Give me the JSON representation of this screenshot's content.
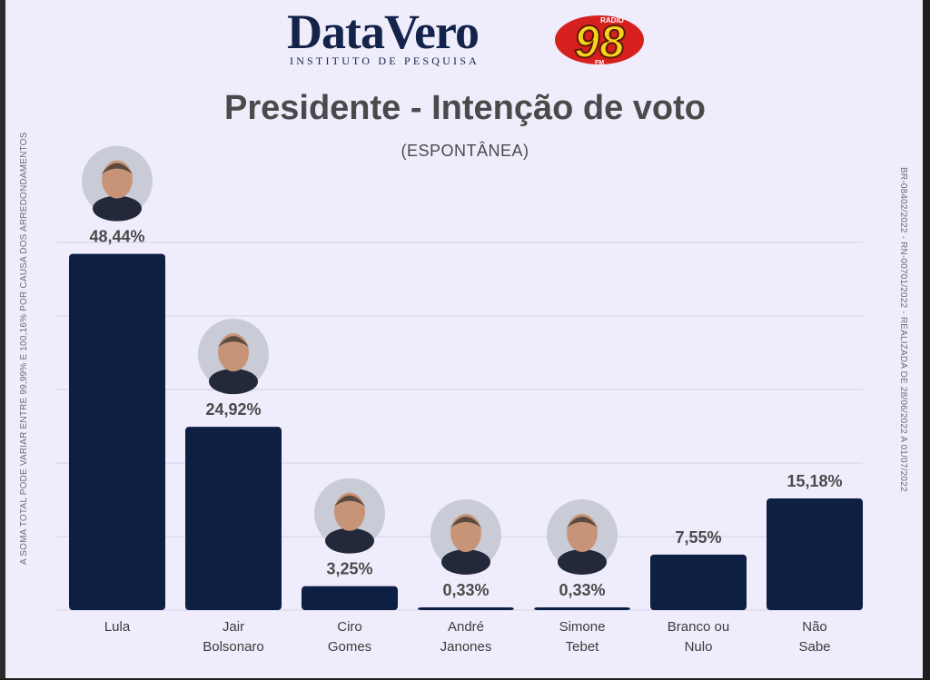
{
  "brand": {
    "name": "DataVero",
    "tagline": "INSTITUTO DE PESQUISA",
    "radio_number": "98",
    "radio_word": "RADIO",
    "radio_band": "FM"
  },
  "title": "Presidente - Intenção de voto",
  "subtitle": "(ESPONTÂNEA)",
  "side_note_left": "A SOMA TOTAL  PODE VARIAR ENTRE 99,99% E 100,16% POR CAUSA DOS ARREDONDAMENTOS",
  "side_note_right": "BR-08402/2022 - RN-00701/2022 - REALIZADA DE 28/06/2022 A 01/07/2022",
  "colors": {
    "bar": "#0e1f44",
    "background": "#efedfb",
    "grid": "#d4d2e6"
  },
  "chart_data": {
    "type": "bar",
    "title": "Presidente - Intenção de voto",
    "subtitle": "(ESPONTÂNEA)",
    "categories": [
      "Lula",
      "Jair Bolsonaro",
      "Ciro Gomes",
      "André Janones",
      "Simone Tebet",
      "Branco ou Nulo",
      "Não Sabe"
    ],
    "category_lines": [
      [
        "Lula"
      ],
      [
        "Jair",
        "Bolsonaro"
      ],
      [
        "Ciro",
        "Gomes"
      ],
      [
        "André",
        "Janones"
      ],
      [
        "Simone",
        "Tebet"
      ],
      [
        "Branco ou",
        "Nulo"
      ],
      [
        "Não",
        "Sabe"
      ]
    ],
    "values": [
      48.44,
      24.92,
      3.25,
      0.33,
      0.33,
      7.55,
      15.18
    ],
    "value_labels": [
      "48,44%",
      "24,92%",
      "3,25%",
      "0,33%",
      "0,33%",
      "7,55%",
      "15,18%"
    ],
    "has_photo": [
      true,
      true,
      true,
      true,
      true,
      false,
      false
    ],
    "ylim": [
      0,
      50
    ],
    "grid": true,
    "xlabel": "",
    "ylabel": ""
  }
}
